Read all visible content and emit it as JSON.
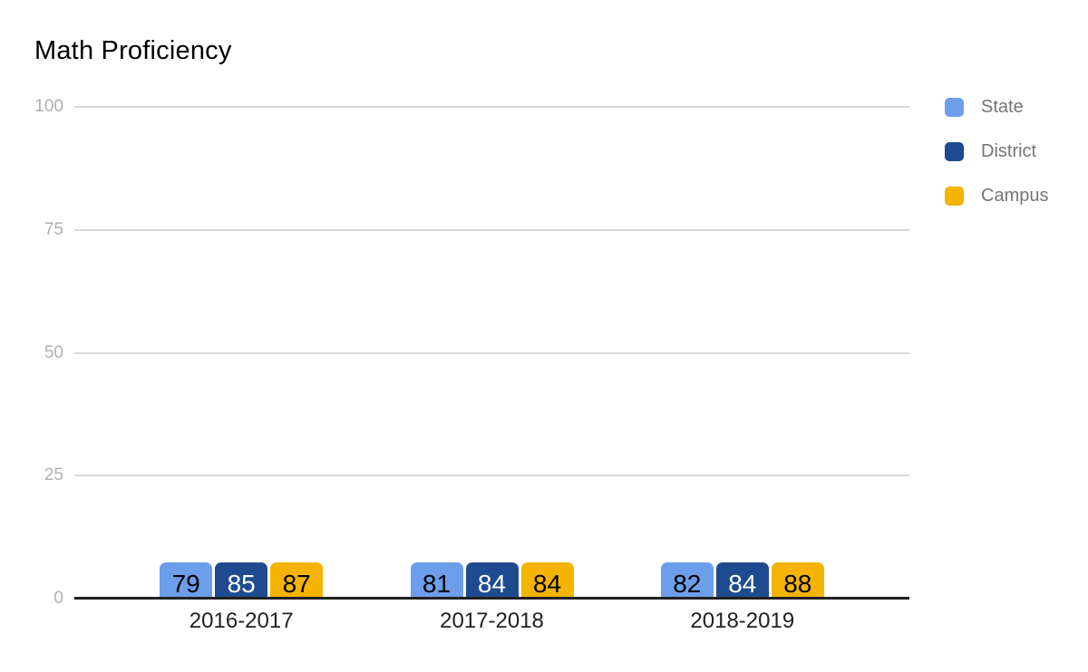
{
  "page": {
    "background": "#ffffff"
  },
  "chart_data": {
    "type": "bar",
    "title": "Math Proficiency",
    "categories": [
      "2016-2017",
      "2017-2018",
      "2018-2019"
    ],
    "series": [
      {
        "name": "State",
        "color": "#6d9eeb",
        "value_label_color": "#000000",
        "values": [
          79,
          81,
          82
        ]
      },
      {
        "name": "District",
        "color": "#1e4b8f",
        "value_label_color": "#ffffff",
        "values": [
          85,
          84,
          84
        ]
      },
      {
        "name": "Campus",
        "color": "#f4b400",
        "value_label_color": "#000000",
        "values": [
          87,
          84,
          88
        ]
      }
    ],
    "xlabel": "",
    "ylabel": "",
    "ylim": [
      0,
      100
    ],
    "yticks": [
      0,
      25,
      50,
      75,
      100
    ],
    "grid": true,
    "value_labels_shown": true,
    "legend_position": "right"
  },
  "axis_colors": {
    "gridline": "#d9d9d9",
    "baseline": "#212121",
    "tick_label": "#b0b0b0",
    "category_label": "#212121",
    "legend_label": "#757575"
  }
}
